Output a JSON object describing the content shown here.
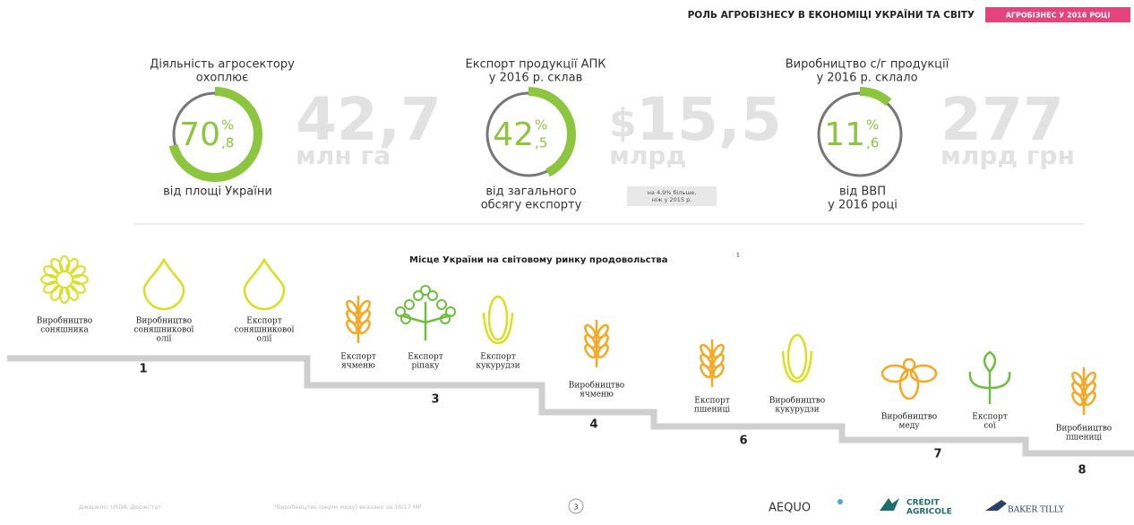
{
  "header": {
    "title": "РОЛЬ АГРОБІЗНЕСУ В ЕКОНОМІЦІ УКРАЇНИ ТА СВІТУ",
    "tag": "АГРОБІЗНЕС У 2016 РОЦІ"
  },
  "stats": [
    {
      "caption": [
        "Діяльність агросектору",
        "охоплює"
      ],
      "percent": {
        "value": 70.8,
        "whole": "70",
        "fraction": ",8",
        "sign": "%"
      },
      "prefix": "",
      "big": "42,7",
      "unit": "млн га",
      "sub": [
        "від площі України"
      ],
      "note": []
    },
    {
      "caption": [
        "Експорт продукції АПК",
        "у 2016 р. склав"
      ],
      "percent": {
        "value": 42.5,
        "whole": "42",
        "fraction": ",5",
        "sign": "%"
      },
      "prefix": "$",
      "big": "15,5",
      "unit": "млрд",
      "sub": [
        "від загального",
        "обсягу експорту"
      ],
      "note": [
        "на 4,9% більше,",
        "ніж у 2015 р."
      ]
    },
    {
      "caption": [
        "Виробництво с/г продукції",
        "у 2016 р. склало"
      ],
      "percent": {
        "value": 11.6,
        "whole": "11",
        "fraction": ",6",
        "sign": "%"
      },
      "prefix": "",
      "big": "277",
      "unit": "млрд грн",
      "sub": [
        "від ВВП",
        "у 2016 році"
      ],
      "note": []
    }
  ],
  "ranking": {
    "title": "Місце України на світовому ринку продовольства",
    "footnote_mark": "1",
    "groups": [
      {
        "rank": "1",
        "items": [
          {
            "label": [
              "Виробництво",
              "соняшника"
            ]
          },
          {
            "label": [
              "Виробництво",
              "соняшникової",
              "олії"
            ]
          },
          {
            "label": [
              "Експорт",
              "соняшникової",
              "олії"
            ]
          }
        ]
      },
      {
        "rank": "3",
        "items": [
          {
            "label": [
              "Експорт",
              "ячменю"
            ]
          },
          {
            "label": [
              "Експорт",
              "ріпаку"
            ]
          },
          {
            "label": [
              "Експорт",
              "кукурудзи"
            ]
          }
        ]
      },
      {
        "rank": "4",
        "items": [
          {
            "label": [
              "Виробництво",
              "ячменю"
            ]
          }
        ]
      },
      {
        "rank": "6",
        "items": [
          {
            "label": [
              "Експорт",
              "пшениці"
            ]
          },
          {
            "label": [
              "Виробництво",
              "кукурудзи"
            ]
          }
        ]
      },
      {
        "rank": "7",
        "items": [
          {
            "label": [
              "Виробництво",
              "меду"
            ]
          },
          {
            "label": [
              "Експорт",
              "сої"
            ]
          }
        ]
      },
      {
        "rank": "8",
        "items": [
          {
            "label": [
              "Виробництво",
              "пшениці"
            ]
          }
        ]
      }
    ]
  },
  "footer": {
    "source": "Джерело: USDA, Держстат",
    "footnote": "¹Виробництво (окрім меду) вказано за 16/17 МР",
    "page": "3",
    "logos": {
      "aequo": "AEQUO",
      "credit": [
        "CRÉDIT",
        "AGRICOLE"
      ],
      "baker": "BAKER TILLY"
    }
  }
}
